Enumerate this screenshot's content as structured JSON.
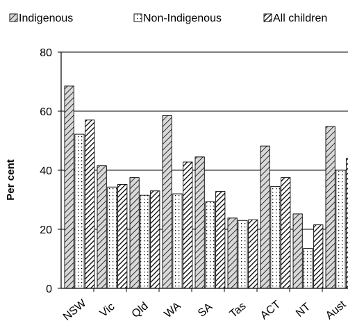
{
  "chart_data": {
    "type": "bar",
    "ylabel": "Per cent",
    "ylim": [
      0,
      80
    ],
    "yticks": [
      0,
      20,
      40,
      60,
      80
    ],
    "grid": true,
    "legend_position": "top",
    "categories": [
      "NSW",
      "Vic",
      "Qld",
      "WA",
      "SA",
      "Tas",
      "ACT",
      "NT",
      "Aust"
    ],
    "series": [
      {
        "name": "Indigenous",
        "pattern": "diagonal-hatch",
        "color": "#000000",
        "values": [
          68.5,
          41.5,
          37.5,
          58.5,
          44.5,
          23.8,
          48.2,
          25.2,
          54.8
        ]
      },
      {
        "name": "Non-Indigenous",
        "pattern": "dotted",
        "color": "#000000",
        "values": [
          52.2,
          34.3,
          31.5,
          32.0,
          29.3,
          23.0,
          34.5,
          13.5,
          40.0
        ]
      },
      {
        "name": "All children",
        "pattern": "dense-diagonal-hatch",
        "color": "#000000",
        "values": [
          57.0,
          35.2,
          33.0,
          42.8,
          32.8,
          23.2,
          37.5,
          21.5,
          44.0
        ]
      }
    ]
  }
}
